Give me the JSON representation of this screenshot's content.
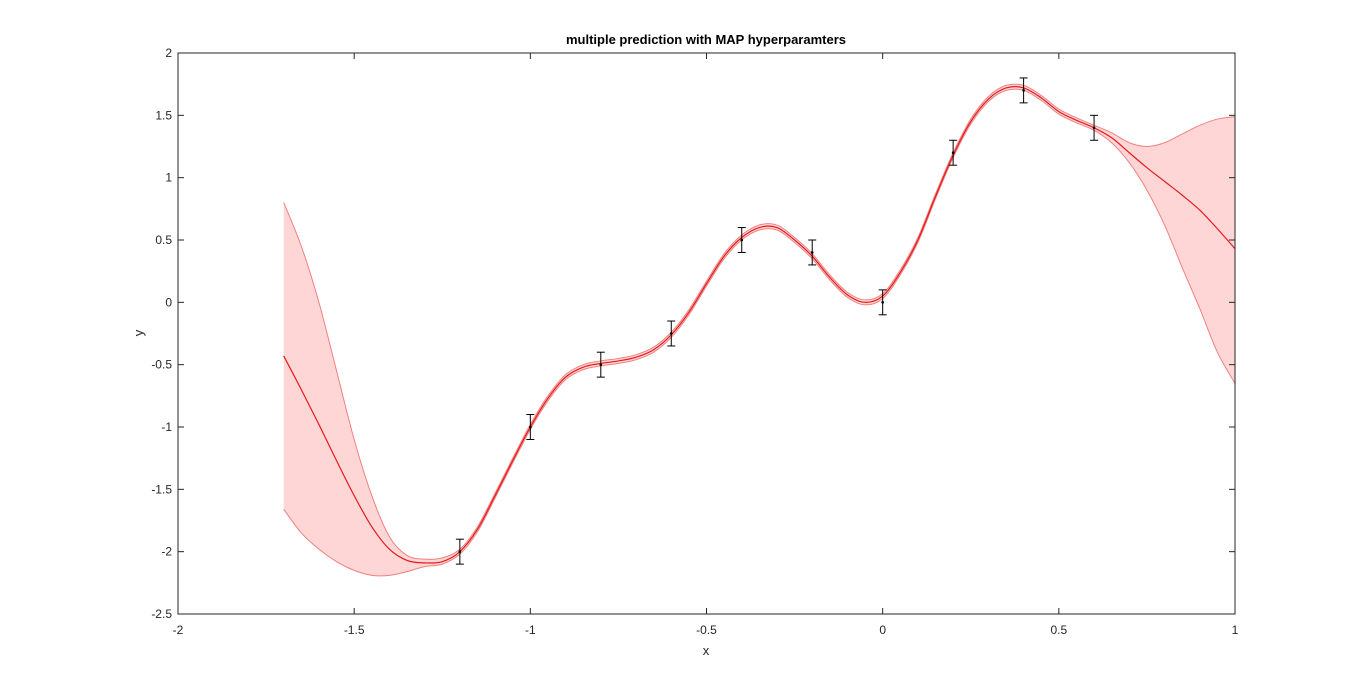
{
  "chart_data": {
    "type": "line",
    "title": "multiple prediction with MAP hyperparamters",
    "xlabel": "x",
    "ylabel": "y",
    "xlim": [
      -2,
      1
    ],
    "ylim": [
      -2.5,
      2
    ],
    "xticks": [
      -2,
      -1.5,
      -1,
      -0.5,
      0,
      0.5,
      1
    ],
    "yticks": [
      -2.5,
      -2,
      -1.5,
      -1,
      -0.5,
      0,
      0.5,
      1,
      1.5,
      2
    ],
    "xtick_labels": [
      "-2",
      "-1.5",
      "-1",
      "-0.5",
      "0",
      "0.5",
      "1"
    ],
    "ytick_labels": [
      "-2.5",
      "-2",
      "-1.5",
      "-1",
      "-0.5",
      "0",
      "0.5",
      "1",
      "1.5",
      "2"
    ],
    "grid": false,
    "box": true,
    "colors": {
      "mean": "#e31a1c",
      "band_fill": "#ffd6d6",
      "band_edge": "#f08080",
      "errorbar": "#000000",
      "axes": "#262626"
    },
    "series": [
      {
        "kind": "mean",
        "x": [
          -1.7,
          -1.65,
          -1.6,
          -1.55,
          -1.5,
          -1.45,
          -1.4,
          -1.35,
          -1.3,
          -1.25,
          -1.2,
          -1.15,
          -1.1,
          -1.05,
          -1.0,
          -0.95,
          -0.9,
          -0.85,
          -0.8,
          -0.75,
          -0.7,
          -0.65,
          -0.6,
          -0.55,
          -0.5,
          -0.45,
          -0.4,
          -0.35,
          -0.3,
          -0.25,
          -0.2,
          -0.15,
          -0.1,
          -0.05,
          0.0,
          0.05,
          0.1,
          0.15,
          0.2,
          0.25,
          0.3,
          0.35,
          0.4,
          0.45,
          0.5,
          0.55,
          0.6,
          0.65,
          0.7,
          0.75,
          0.8,
          0.85,
          0.9,
          0.95,
          1.0
        ],
        "y": [
          -0.43,
          -0.7,
          -0.98,
          -1.27,
          -1.55,
          -1.8,
          -1.98,
          -2.07,
          -2.09,
          -2.08,
          -2.0,
          -1.82,
          -1.55,
          -1.27,
          -1.0,
          -0.77,
          -0.6,
          -0.52,
          -0.49,
          -0.47,
          -0.44,
          -0.38,
          -0.26,
          -0.08,
          0.15,
          0.37,
          0.52,
          0.6,
          0.6,
          0.5,
          0.37,
          0.2,
          0.06,
          0.0,
          0.05,
          0.24,
          0.5,
          0.85,
          1.18,
          1.45,
          1.63,
          1.72,
          1.72,
          1.64,
          1.53,
          1.46,
          1.4,
          1.32,
          1.2,
          1.08,
          0.97,
          0.86,
          0.74,
          0.59,
          0.43
        ]
      },
      {
        "kind": "band_upper",
        "x": [
          -1.7,
          -1.65,
          -1.6,
          -1.55,
          -1.5,
          -1.45,
          -1.4,
          -1.35,
          -1.3,
          -1.25,
          -1.2,
          -1.15,
          -1.1,
          -1.05,
          -1.0,
          -0.95,
          -0.9,
          -0.85,
          -0.8,
          -0.75,
          -0.7,
          -0.65,
          -0.6,
          -0.55,
          -0.5,
          -0.45,
          -0.4,
          -0.35,
          -0.3,
          -0.25,
          -0.2,
          -0.15,
          -0.1,
          -0.05,
          0.0,
          0.05,
          0.1,
          0.15,
          0.2,
          0.25,
          0.3,
          0.35,
          0.4,
          0.45,
          0.5,
          0.55,
          0.6,
          0.65,
          0.7,
          0.75,
          0.8,
          0.85,
          0.9,
          0.95,
          1.0
        ],
        "y": [
          0.8,
          0.45,
          0.0,
          -0.55,
          -1.1,
          -1.55,
          -1.88,
          -2.03,
          -2.06,
          -2.05,
          -1.98,
          -1.8,
          -1.53,
          -1.25,
          -0.98,
          -0.75,
          -0.58,
          -0.5,
          -0.47,
          -0.45,
          -0.42,
          -0.36,
          -0.24,
          -0.06,
          0.17,
          0.39,
          0.54,
          0.62,
          0.62,
          0.52,
          0.39,
          0.22,
          0.08,
          0.02,
          0.07,
          0.26,
          0.52,
          0.87,
          1.2,
          1.47,
          1.65,
          1.74,
          1.74,
          1.66,
          1.55,
          1.48,
          1.42,
          1.36,
          1.28,
          1.25,
          1.28,
          1.35,
          1.42,
          1.47,
          1.49
        ]
      },
      {
        "kind": "band_lower",
        "x": [
          -1.7,
          -1.65,
          -1.6,
          -1.55,
          -1.5,
          -1.45,
          -1.4,
          -1.35,
          -1.3,
          -1.25,
          -1.2,
          -1.15,
          -1.1,
          -1.05,
          -1.0,
          -0.95,
          -0.9,
          -0.85,
          -0.8,
          -0.75,
          -0.7,
          -0.65,
          -0.6,
          -0.55,
          -0.5,
          -0.45,
          -0.4,
          -0.35,
          -0.3,
          -0.25,
          -0.2,
          -0.15,
          -0.1,
          -0.05,
          0.0,
          0.05,
          0.1,
          0.15,
          0.2,
          0.25,
          0.3,
          0.35,
          0.4,
          0.45,
          0.5,
          0.55,
          0.6,
          0.65,
          0.7,
          0.75,
          0.8,
          0.85,
          0.9,
          0.95,
          1.0
        ],
        "y": [
          -1.66,
          -1.85,
          -1.98,
          -2.08,
          -2.15,
          -2.19,
          -2.19,
          -2.16,
          -2.12,
          -2.1,
          -2.02,
          -1.84,
          -1.57,
          -1.29,
          -1.02,
          -0.79,
          -0.62,
          -0.54,
          -0.51,
          -0.49,
          -0.46,
          -0.4,
          -0.28,
          -0.1,
          0.13,
          0.35,
          0.5,
          0.58,
          0.58,
          0.48,
          0.35,
          0.18,
          0.04,
          -0.02,
          0.03,
          0.22,
          0.48,
          0.83,
          1.16,
          1.43,
          1.61,
          1.7,
          1.7,
          1.62,
          1.51,
          1.44,
          1.38,
          1.28,
          1.12,
          0.9,
          0.62,
          0.28,
          -0.05,
          -0.4,
          -0.65
        ]
      },
      {
        "kind": "observations",
        "x": [
          -1.2,
          -1.0,
          -0.8,
          -0.6,
          -0.4,
          -0.2,
          0.0,
          0.2,
          0.4,
          0.6
        ],
        "y": [
          -2.0,
          -1.0,
          -0.5,
          -0.25,
          0.5,
          0.4,
          0.0,
          1.2,
          1.7,
          1.4
        ],
        "err": [
          0.1,
          0.1,
          0.1,
          0.1,
          0.1,
          0.1,
          0.1,
          0.1,
          0.1,
          0.1
        ]
      }
    ]
  }
}
